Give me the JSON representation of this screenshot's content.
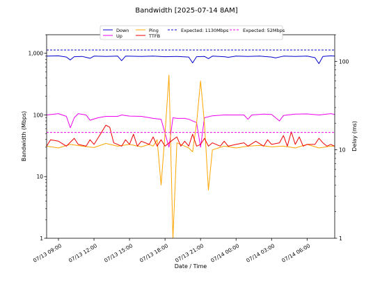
{
  "chart_data": {
    "type": "line",
    "title": "Bandwidth [2025-07-14 8AM]",
    "xlabel": "Date / Time",
    "ylabel_left": "Bandwidth (Mbps)",
    "ylabel_right": "Delay (ms)",
    "x_range": [
      "2025-07-13 08:00",
      "2025-07-14 08:20"
    ],
    "x_ticks": [
      "2025-07-13 09:00",
      "2025-07-13 12:00",
      "2025-07-13 15:00",
      "2025-07-13 18:00",
      "2025-07-13 21:00",
      "2025-07-14 00:00",
      "2025-07-14 03:00",
      "2025-07-14 06:00"
    ],
    "x_tick_labels": [
      "07/13 09:00",
      "07/13 12:00",
      "07/13 15:00",
      "07/13 18:00",
      "07/13 21:00",
      "07/14 00:00",
      "07/14 03:00",
      "07/14 06:00"
    ],
    "y_left": {
      "scale": "log",
      "range": [
        1,
        2000
      ],
      "ticks": [
        1,
        10,
        100,
        1000
      ],
      "tick_labels": [
        "1",
        "10",
        "100",
        "1,000"
      ]
    },
    "y_right": {
      "scale": "log",
      "range": [
        1,
        200
      ],
      "ticks": [
        1,
        10,
        100
      ],
      "tick_labels": [
        "1",
        "10",
        "100"
      ]
    },
    "legend_position": "top-center",
    "grid": false,
    "series": [
      {
        "name": "Down",
        "axis": "left",
        "color": "#0000cc",
        "style": "solid",
        "points": [
          [
            "2025-07-13 08:00",
            900
          ],
          [
            "2025-07-13 09:00",
            910
          ],
          [
            "2025-07-13 09:40",
            870
          ],
          [
            "2025-07-13 10:00",
            780
          ],
          [
            "2025-07-13 10:20",
            880
          ],
          [
            "2025-07-13 11:00",
            890
          ],
          [
            "2025-07-13 11:40",
            830
          ],
          [
            "2025-07-13 12:00",
            900
          ],
          [
            "2025-07-13 13:00",
            890
          ],
          [
            "2025-07-13 14:00",
            900
          ],
          [
            "2025-07-13 14:20",
            760
          ],
          [
            "2025-07-13 14:40",
            900
          ],
          [
            "2025-07-13 16:00",
            890
          ],
          [
            "2025-07-13 17:00",
            900
          ],
          [
            "2025-07-13 18:00",
            880
          ],
          [
            "2025-07-13 19:00",
            890
          ],
          [
            "2025-07-13 20:00",
            870
          ],
          [
            "2025-07-13 20:20",
            700
          ],
          [
            "2025-07-13 20:40",
            880
          ],
          [
            "2025-07-13 21:20",
            890
          ],
          [
            "2025-07-13 21:40",
            820
          ],
          [
            "2025-07-13 22:00",
            900
          ],
          [
            "2025-07-13 23:00",
            880
          ],
          [
            "2025-07-13 23:20",
            860
          ],
          [
            "2025-07-14 00:00",
            900
          ],
          [
            "2025-07-14 01:00",
            890
          ],
          [
            "2025-07-14 02:00",
            900
          ],
          [
            "2025-07-14 03:00",
            870
          ],
          [
            "2025-07-14 03:20",
            840
          ],
          [
            "2025-07-14 04:00",
            900
          ],
          [
            "2025-07-14 05:00",
            890
          ],
          [
            "2025-07-14 06:00",
            900
          ],
          [
            "2025-07-14 06:40",
            850
          ],
          [
            "2025-07-14 07:00",
            680
          ],
          [
            "2025-07-14 07:20",
            890
          ],
          [
            "2025-07-14 08:00",
            910
          ],
          [
            "2025-07-14 08:20",
            900
          ]
        ]
      },
      {
        "name": "Up",
        "axis": "left",
        "color": "#ee00ee",
        "style": "solid",
        "points": [
          [
            "2025-07-13 08:00",
            100
          ],
          [
            "2025-07-13 09:00",
            105
          ],
          [
            "2025-07-13 09:40",
            95
          ],
          [
            "2025-07-13 10:00",
            62
          ],
          [
            "2025-07-13 10:20",
            90
          ],
          [
            "2025-07-13 10:40",
            105
          ],
          [
            "2025-07-13 11:20",
            100
          ],
          [
            "2025-07-13 11:40",
            82
          ],
          [
            "2025-07-13 12:20",
            90
          ],
          [
            "2025-07-13 13:00",
            95
          ],
          [
            "2025-07-13 14:00",
            95
          ],
          [
            "2025-07-13 14:20",
            100
          ],
          [
            "2025-07-13 15:00",
            96
          ],
          [
            "2025-07-13 16:00",
            95
          ],
          [
            "2025-07-13 17:00",
            88
          ],
          [
            "2025-07-13 17:40",
            85
          ],
          [
            "2025-07-13 18:20",
            30
          ],
          [
            "2025-07-13 18:40",
            90
          ],
          [
            "2025-07-13 19:00",
            88
          ],
          [
            "2025-07-13 19:40",
            88
          ],
          [
            "2025-07-13 20:00",
            85
          ],
          [
            "2025-07-13 20:40",
            75
          ],
          [
            "2025-07-13 21:00",
            30
          ],
          [
            "2025-07-13 21:20",
            90
          ],
          [
            "2025-07-13 22:00",
            97
          ],
          [
            "2025-07-13 23:00",
            100
          ],
          [
            "2025-07-14 00:00",
            100
          ],
          [
            "2025-07-14 00:40",
            100
          ],
          [
            "2025-07-14 01:00",
            85
          ],
          [
            "2025-07-14 01:20",
            100
          ],
          [
            "2025-07-14 02:20",
            103
          ],
          [
            "2025-07-14 03:00",
            102
          ],
          [
            "2025-07-14 03:40",
            80
          ],
          [
            "2025-07-14 04:00",
            98
          ],
          [
            "2025-07-14 05:00",
            103
          ],
          [
            "2025-07-14 06:00",
            104
          ],
          [
            "2025-07-14 07:00",
            100
          ],
          [
            "2025-07-14 08:00",
            105
          ],
          [
            "2025-07-14 08:20",
            102
          ]
        ]
      },
      {
        "name": "Ping",
        "axis": "right",
        "color": "#ffa500",
        "style": "solid",
        "points": [
          [
            "2025-07-13 08:00",
            11
          ],
          [
            "2025-07-13 09:00",
            10.5
          ],
          [
            "2025-07-13 10:00",
            11.5
          ],
          [
            "2025-07-13 11:00",
            11
          ],
          [
            "2025-07-13 12:00",
            10.6
          ],
          [
            "2025-07-13 13:00",
            11.8
          ],
          [
            "2025-07-13 14:00",
            11
          ],
          [
            "2025-07-13 15:00",
            11.5
          ],
          [
            "2025-07-13 16:00",
            10.8
          ],
          [
            "2025-07-13 16:40",
            11.5
          ],
          [
            "2025-07-13 17:00",
            11
          ],
          [
            "2025-07-13 17:20",
            13
          ],
          [
            "2025-07-13 17:40",
            4
          ],
          [
            "2025-07-13 18:00",
            15
          ],
          [
            "2025-07-13 18:20",
            70
          ],
          [
            "2025-07-13 18:40",
            1
          ],
          [
            "2025-07-13 19:00",
            12
          ],
          [
            "2025-07-13 19:40",
            11
          ],
          [
            "2025-07-13 20:00",
            10.5
          ],
          [
            "2025-07-13 20:20",
            9.5
          ],
          [
            "2025-07-13 20:40",
            20
          ],
          [
            "2025-07-13 21:00",
            60
          ],
          [
            "2025-07-13 21:20",
            20
          ],
          [
            "2025-07-13 21:40",
            3.5
          ],
          [
            "2025-07-13 22:00",
            10
          ],
          [
            "2025-07-13 23:00",
            11
          ],
          [
            "2025-07-14 00:00",
            10.5
          ],
          [
            "2025-07-14 01:00",
            11
          ],
          [
            "2025-07-14 02:00",
            11.2
          ],
          [
            "2025-07-14 03:00",
            10.8
          ],
          [
            "2025-07-14 04:00",
            11
          ],
          [
            "2025-07-14 05:00",
            10.5
          ],
          [
            "2025-07-14 06:00",
            11.5
          ],
          [
            "2025-07-14 07:00",
            10.5
          ],
          [
            "2025-07-14 08:00",
            11
          ],
          [
            "2025-07-14 08:20",
            11
          ]
        ]
      },
      {
        "name": "TTFB",
        "axis": "right",
        "color": "#ee0000",
        "style": "solid",
        "points": [
          [
            "2025-07-13 08:00",
            11
          ],
          [
            "2025-07-13 08:20",
            13
          ],
          [
            "2025-07-13 09:00",
            12.5
          ],
          [
            "2025-07-13 09:40",
            11
          ],
          [
            "2025-07-13 10:20",
            13.5
          ],
          [
            "2025-07-13 10:40",
            11.5
          ],
          [
            "2025-07-13 11:20",
            11
          ],
          [
            "2025-07-13 11:40",
            13
          ],
          [
            "2025-07-13 12:00",
            11.5
          ],
          [
            "2025-07-13 12:40",
            16
          ],
          [
            "2025-07-13 13:00",
            19
          ],
          [
            "2025-07-13 13:20",
            18
          ],
          [
            "2025-07-13 13:40",
            12
          ],
          [
            "2025-07-13 14:20",
            11
          ],
          [
            "2025-07-13 14:40",
            13
          ],
          [
            "2025-07-13 15:00",
            11.5
          ],
          [
            "2025-07-13 15:20",
            15
          ],
          [
            "2025-07-13 15:40",
            11
          ],
          [
            "2025-07-13 16:00",
            12.5
          ],
          [
            "2025-07-13 16:40",
            11.5
          ],
          [
            "2025-07-13 17:00",
            14
          ],
          [
            "2025-07-13 17:20",
            11
          ],
          [
            "2025-07-13 17:40",
            13
          ],
          [
            "2025-07-13 18:00",
            11
          ],
          [
            "2025-07-13 18:40",
            13
          ],
          [
            "2025-07-13 19:00",
            14
          ],
          [
            "2025-07-13 19:20",
            11
          ],
          [
            "2025-07-13 19:40",
            12.5
          ],
          [
            "2025-07-13 20:00",
            11
          ],
          [
            "2025-07-13 20:20",
            15
          ],
          [
            "2025-07-13 20:40",
            11
          ],
          [
            "2025-07-13 21:00",
            11.5
          ],
          [
            "2025-07-13 21:20",
            13.5
          ],
          [
            "2025-07-13 21:40",
            11
          ],
          [
            "2025-07-13 22:00",
            12
          ],
          [
            "2025-07-13 22:40",
            11
          ],
          [
            "2025-07-13 23:00",
            12.5
          ],
          [
            "2025-07-13 23:20",
            11
          ],
          [
            "2025-07-14 00:00",
            11.5
          ],
          [
            "2025-07-14 00:40",
            12
          ],
          [
            "2025-07-14 01:00",
            11
          ],
          [
            "2025-07-14 01:40",
            12.5
          ],
          [
            "2025-07-14 02:20",
            11
          ],
          [
            "2025-07-14 02:40",
            13
          ],
          [
            "2025-07-14 03:00",
            11.5
          ],
          [
            "2025-07-14 03:40",
            12
          ],
          [
            "2025-07-14 04:00",
            14.5
          ],
          [
            "2025-07-14 04:20",
            11
          ],
          [
            "2025-07-14 04:40",
            16
          ],
          [
            "2025-07-14 05:00",
            11.5
          ],
          [
            "2025-07-14 05:20",
            14
          ],
          [
            "2025-07-14 05:40",
            11
          ],
          [
            "2025-07-14 06:00",
            11.5
          ],
          [
            "2025-07-14 06:40",
            11.5
          ],
          [
            "2025-07-14 07:00",
            13.5
          ],
          [
            "2025-07-14 07:20",
            12
          ],
          [
            "2025-07-14 07:40",
            11
          ],
          [
            "2025-07-14 08:00",
            11.5
          ],
          [
            "2025-07-14 08:20",
            11
          ]
        ]
      },
      {
        "name": "Expected: 1130Mbps",
        "axis": "left",
        "color": "#0000cc",
        "style": "dashed",
        "constant": 1130
      },
      {
        "name": "Expected: 52Mbps",
        "axis": "left",
        "color": "#ee00ee",
        "style": "dashed",
        "constant": 52
      }
    ]
  }
}
